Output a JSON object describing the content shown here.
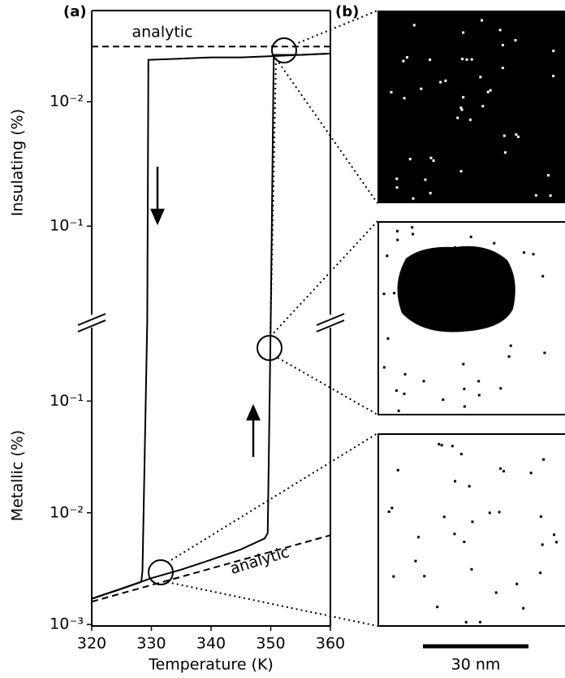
{
  "chart_data": [
    {
      "type": "line",
      "ylabel": "Insulating (%)",
      "log": true,
      "yinvert": true,
      "xlim": [
        320,
        360
      ],
      "ylim": [
        0.00185,
        0.58
      ],
      "yticks": [
        {
          "value": 0.01,
          "label": "10⁻²"
        },
        {
          "value": 0.1,
          "label": "10⁻¹"
        }
      ],
      "annotation": "analytic",
      "series": [
        {
          "color": "#000000",
          "dash": true,
          "x": [
            320,
            360
          ],
          "values": [
            0.0036,
            0.0036
          ]
        },
        {
          "color": "#000000",
          "dash": false,
          "x": [
            360,
            355,
            350,
            345,
            340,
            335,
            330,
            329.5,
            329.3
          ],
          "values": [
            0.0041,
            0.0042,
            0.0043,
            0.0044,
            0.0044,
            0.0045,
            0.0046,
            0.0046,
            0.58
          ]
        },
        {
          "color": "#000000",
          "dash": false,
          "x": [
            350,
            350.5,
            355,
            360
          ],
          "values": [
            0.58,
            0.0042,
            0.0042,
            0.0041
          ]
        }
      ]
    },
    {
      "type": "line",
      "ylabel": "Metallic (%)",
      "xlabel": "Temperature (K)",
      "log": true,
      "yinvert": false,
      "xlim": [
        320,
        360
      ],
      "ylim": [
        0.00097,
        0.52
      ],
      "xticks": [
        320,
        330,
        340,
        350,
        360
      ],
      "yticks": [
        {
          "value": 0.1,
          "label": "10⁻¹"
        },
        {
          "value": 0.01,
          "label": "10⁻²"
        },
        {
          "value": 0.001,
          "label": "10⁻³"
        }
      ],
      "annotation": "analytic",
      "series": [
        {
          "color": "#000000",
          "dash": true,
          "x": [
            320,
            360
          ],
          "values": [
            0.0016,
            0.0063
          ]
        },
        {
          "color": "#000000",
          "dash": false,
          "x": [
            329.3,
            328.5,
            328.3,
            324,
            320
          ],
          "values": [
            0.52,
            0.003,
            0.0024,
            0.002,
            0.0017
          ]
        },
        {
          "color": "#000000",
          "dash": false,
          "x": [
            320,
            325,
            330,
            335,
            340,
            345,
            349,
            349.5,
            350
          ],
          "values": [
            0.0017,
            0.0021,
            0.0026,
            0.0031,
            0.0038,
            0.0047,
            0.0059,
            0.0066,
            0.52
          ]
        }
      ]
    }
  ],
  "panels": {
    "a": "(a)",
    "b": "(b)"
  },
  "scale_bar": "30 nm"
}
